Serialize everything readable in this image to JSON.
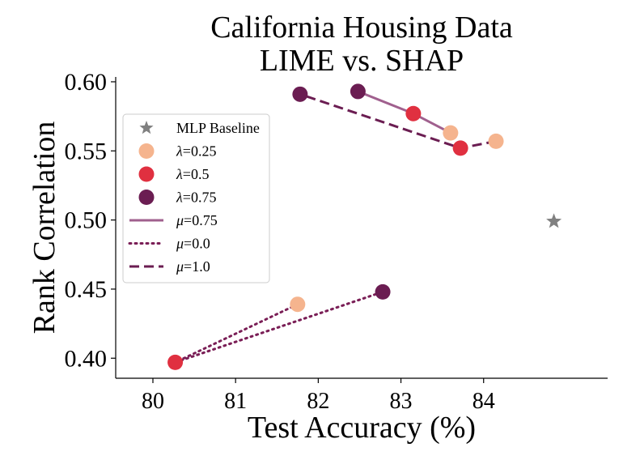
{
  "chart_data": {
    "type": "scatter",
    "title_lines": [
      "California Housing Data",
      "LIME vs. SHAP"
    ],
    "xlabel": "Test Accuracy (%)",
    "ylabel": "Rank Correlation",
    "xlim": [
      79.55,
      85.5
    ],
    "ylim": [
      0.3855,
      0.6035
    ],
    "xticks": [
      80,
      81,
      82,
      83,
      84
    ],
    "yticks": [
      0.4,
      0.45,
      0.5,
      0.55,
      0.6
    ],
    "ytick_labels": [
      "0.40",
      "0.45",
      "0.50",
      "0.55",
      "0.60"
    ],
    "grid": false,
    "legend_position": "upper-left",
    "baseline": {
      "name": "MLP Baseline",
      "x": 84.85,
      "y": 0.499,
      "color": "#808080"
    },
    "lambda_colors": {
      "0.25": "#f5b48e",
      "0.5": "#e03040",
      "0.75": "#6b1d52"
    },
    "mu_styles": {
      "0.75": {
        "color": "#a0608e",
        "dash": ""
      },
      "0.0": {
        "color": "#7a1e56",
        "dash": "2 5"
      },
      "1.0": {
        "color": "#6b1d52",
        "dash": "12 6"
      }
    },
    "points": [
      {
        "x": 83.6,
        "y": 0.563,
        "lambda": "0.25"
      },
      {
        "x": 83.15,
        "y": 0.577,
        "lambda": "0.5"
      },
      {
        "x": 82.48,
        "y": 0.593,
        "lambda": "0.75"
      },
      {
        "x": 84.15,
        "y": 0.557,
        "lambda": "0.25"
      },
      {
        "x": 83.72,
        "y": 0.552,
        "lambda": "0.5"
      },
      {
        "x": 81.78,
        "y": 0.591,
        "lambda": "0.75"
      },
      {
        "x": 81.75,
        "y": 0.439,
        "lambda": "0.25"
      },
      {
        "x": 80.27,
        "y": 0.397,
        "lambda": "0.5"
      },
      {
        "x": 82.78,
        "y": 0.448,
        "lambda": "0.75"
      }
    ],
    "lines": [
      {
        "mu": "0.75",
        "points": [
          [
            83.6,
            0.563
          ],
          [
            83.15,
            0.577
          ],
          [
            82.48,
            0.593
          ]
        ]
      },
      {
        "mu": "1.0",
        "points": [
          [
            84.15,
            0.557
          ],
          [
            83.72,
            0.552
          ],
          [
            81.78,
            0.591
          ]
        ]
      },
      {
        "mu": "0.0",
        "points": [
          [
            81.75,
            0.439
          ],
          [
            80.27,
            0.397
          ],
          [
            82.78,
            0.448
          ]
        ]
      }
    ],
    "legend": [
      {
        "kind": "star",
        "label": "MLP Baseline"
      },
      {
        "kind": "marker",
        "lambda": "0.25",
        "symbol": "λ",
        "label": "=0.25"
      },
      {
        "kind": "marker",
        "lambda": "0.5",
        "symbol": "λ",
        "label": "=0.5"
      },
      {
        "kind": "marker",
        "lambda": "0.75",
        "symbol": "λ",
        "label": "=0.75"
      },
      {
        "kind": "line",
        "mu": "0.75",
        "symbol": "μ",
        "label": "=0.75"
      },
      {
        "kind": "line",
        "mu": "0.0",
        "symbol": "μ",
        "label": "=0.0"
      },
      {
        "kind": "line",
        "mu": "1.0",
        "symbol": "μ",
        "label": "=1.0"
      }
    ]
  }
}
